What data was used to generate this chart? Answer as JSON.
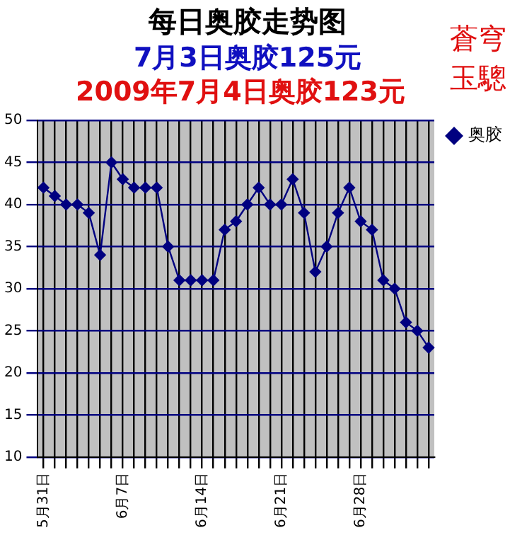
{
  "chart_data": {
    "type": "line",
    "title": "每日奥胶走势图",
    "subtitle": "7月3日奥胶125元",
    "annotations": [
      "2009年7月4日奥胶123元",
      "蒼穹",
      "玉驄"
    ],
    "categories": [
      "5月31日",
      null,
      null,
      null,
      null,
      null,
      null,
      "6月7日",
      null,
      null,
      null,
      null,
      null,
      null,
      "6月14日",
      null,
      null,
      null,
      null,
      null,
      null,
      "6月21日",
      null,
      null,
      null,
      null,
      null,
      null,
      "6月28日",
      null,
      null,
      null,
      null,
      null,
      null
    ],
    "series": [
      {
        "name": "奥胶",
        "color": "#000080",
        "values": [
          42,
          41,
          40,
          40,
          39,
          34,
          45,
          43,
          42,
          42,
          42,
          35,
          31,
          31,
          31,
          31,
          37,
          38,
          40,
          42,
          40,
          40,
          43,
          39,
          32,
          35,
          39,
          42,
          38,
          37,
          31,
          30,
          26,
          25,
          23
        ]
      }
    ],
    "ylim": [
      10,
      50
    ],
    "yticks": [
      10,
      15,
      20,
      25,
      30,
      35,
      40,
      45,
      50
    ],
    "grid": true,
    "legend": "top right",
    "marker": "diamond",
    "line_style": "solid"
  }
}
